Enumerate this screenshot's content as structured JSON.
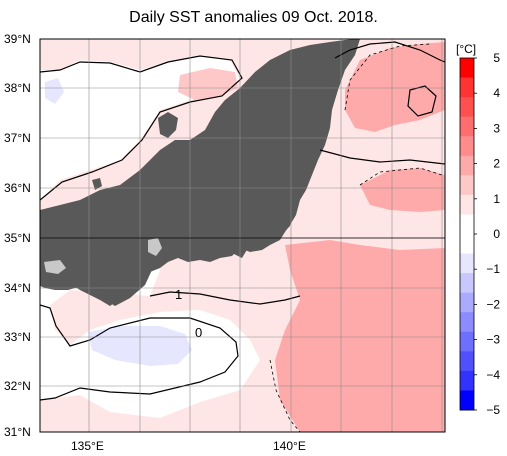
{
  "title": "Daily SST anomalies 09 Oct. 2018.",
  "axes": {
    "lat_labels": [
      "39°N",
      "38°N",
      "37°N",
      "36°N",
      "35°N",
      "34°N",
      "33°N",
      "32°N",
      "31°N"
    ],
    "lon_labels": [
      "135°E",
      "140°E"
    ],
    "lat_range": [
      31,
      39
    ],
    "lon_range": [
      134,
      145
    ]
  },
  "colorbar": {
    "unit": "[°C]",
    "ticks": [
      "5",
      "4",
      "3",
      "2",
      "1",
      "0",
      "−1",
      "−2",
      "−3",
      "−4",
      "−5"
    ],
    "colors": [
      "#ff0000",
      "#ff3333",
      "#ff5050",
      "#ff6e6e",
      "#ff8c8c",
      "#ffaaaa",
      "#ffc8c8",
      "#ffe6e6",
      "#ffffff",
      "#ffffff",
      "#e6e6ff",
      "#c8c8ff",
      "#aaaaff",
      "#8c8cff",
      "#6e6eff",
      "#5050ff",
      "#3333ff",
      "#0000ff"
    ]
  },
  "contour_labels": [
    "1",
    "0"
  ],
  "colors": {
    "land": "#595959",
    "lake": "#c8c8c8",
    "grid": "#8c8c8c",
    "anomaly_0_1": "#ffe6e6",
    "anomaly_1_2": "#ffaaaa",
    "anomaly_neg": "#e6e6ff"
  }
}
